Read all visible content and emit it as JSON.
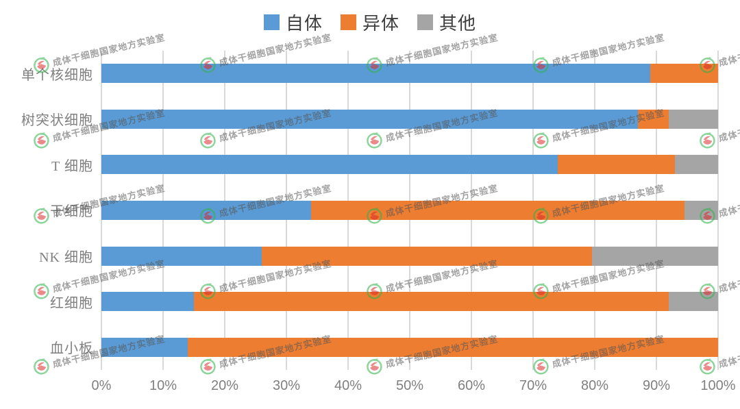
{
  "legend": {
    "position": "top",
    "items": [
      {
        "label": "自体",
        "color": "#5B9BD5"
      },
      {
        "label": "异体",
        "color": "#ED7D31"
      },
      {
        "label": "其他",
        "color": "#A5A5A5"
      }
    ]
  },
  "chart_data": {
    "type": "bar",
    "orientation": "horizontal",
    "stacked": true,
    "title": "",
    "xlabel": "",
    "ylabel": "",
    "categories": [
      "单个核细胞",
      "树突状细胞",
      "T 细胞",
      "干细胞",
      "NK 细胞",
      "红细胞",
      "血小板"
    ],
    "series": [
      {
        "name": "自体",
        "color": "#5B9BD5",
        "values": [
          89,
          87,
          74,
          34,
          26,
          15,
          14
        ]
      },
      {
        "name": "异体",
        "color": "#ED7D31",
        "values": [
          11,
          5,
          19,
          60.5,
          53.5,
          77,
          86
        ]
      },
      {
        "name": "其他",
        "color": "#A5A5A5",
        "values": [
          0,
          8,
          7,
          5.5,
          20.5,
          8,
          0
        ]
      }
    ],
    "x_ticks": [
      "0%",
      "10%",
      "20%",
      "30%",
      "40%",
      "50%",
      "60%",
      "70%",
      "80%",
      "90%",
      "100%"
    ],
    "xlim": [
      0,
      100
    ],
    "grid": true,
    "gridline_color": "#D9D9D9",
    "legend_position": "top"
  },
  "watermark": {
    "text": "成体干细胞国家地方实验室",
    "logo": "watermelon-ring-logo"
  }
}
